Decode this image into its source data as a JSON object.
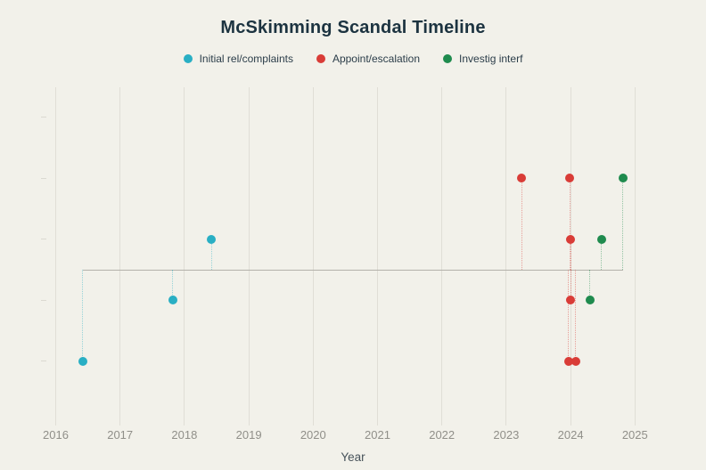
{
  "title": "McSkimming Scandal Timeline",
  "xlabel": "Year",
  "legend": {
    "items": [
      {
        "label": "Initial rel/complaints",
        "color": "#29afc4"
      },
      {
        "label": "Appoint/escalation",
        "color": "#d93c37"
      },
      {
        "label": "Investig interf",
        "color": "#1f8b4e"
      }
    ]
  },
  "colors": {
    "background": "#f2f1ea",
    "title_text": "#1c3340",
    "legend_text": "#2b3d49",
    "tick_text": "#908f89",
    "axis_label_text": "#47525a",
    "gridline": "#e0ded6",
    "baseline": "#b3b1aa"
  },
  "chart_data": {
    "type": "scatter",
    "title": "McSkimming Scandal Timeline",
    "xlabel": "Year",
    "ylabel": "",
    "grid": "vertical-only",
    "legend_position": "top-center",
    "x_ticks": [
      2016,
      2017,
      2018,
      2019,
      2020,
      2021,
      2022,
      2023,
      2024,
      2025
    ],
    "xlim": [
      2015.7,
      2025.7
    ],
    "y_tick_levels": [
      5,
      3,
      1,
      -1,
      -3
    ],
    "baseline_level": 0,
    "series": [
      {
        "name": "Initial rel/complaints",
        "color": "#29afc4",
        "points": [
          {
            "x": 2016.42,
            "level": -3
          },
          {
            "x": 2017.82,
            "level": -1
          },
          {
            "x": 2018.42,
            "level": 1
          }
        ]
      },
      {
        "name": "Appoint/escalation",
        "color": "#d93c37",
        "points": [
          {
            "x": 2023.24,
            "level": 3
          },
          {
            "x": 2023.99,
            "level": 3
          },
          {
            "x": 2024.0,
            "level": 1
          },
          {
            "x": 2024.0,
            "level": -1
          },
          {
            "x": 2023.97,
            "level": -3
          },
          {
            "x": 2024.08,
            "level": -3
          }
        ]
      },
      {
        "name": "Investig interf",
        "color": "#1f8b4e",
        "points": [
          {
            "x": 2024.81,
            "level": 3
          },
          {
            "x": 2024.48,
            "level": 1
          },
          {
            "x": 2024.3,
            "level": -1
          }
        ]
      }
    ]
  }
}
